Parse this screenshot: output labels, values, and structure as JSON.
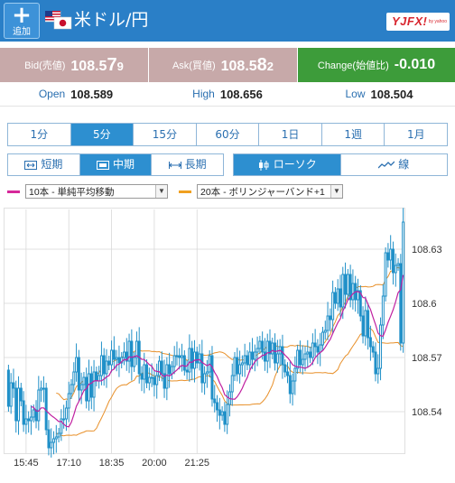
{
  "header": {
    "add_label": "追加",
    "pair_title": "米ドル/円",
    "logo_text": "YJFX!",
    "logo_sub": "by yahoo"
  },
  "quotes": {
    "bid": {
      "label": "Bid(売値)",
      "main": "108.5",
      "big": "7",
      "small": "9"
    },
    "ask": {
      "label": "Ask(買値)",
      "main": "108.5",
      "big": "8",
      "small": "2"
    },
    "change": {
      "label": "Change(始値比)",
      "value": "-0.010"
    }
  },
  "stats": {
    "open": {
      "label": "Open",
      "value": "108.589"
    },
    "high": {
      "label": "High",
      "value": "108.656"
    },
    "low": {
      "label": "Low",
      "value": "108.504"
    }
  },
  "timeframes": [
    "1分",
    "5分",
    "15分",
    "60分",
    "1日",
    "1週",
    "1月"
  ],
  "active_timeframe": "5分",
  "ranges": [
    "短期",
    "中期",
    "長期"
  ],
  "active_range": "中期",
  "chart_types": [
    "ローソク",
    "線"
  ],
  "active_chart_type": "ローソク",
  "indicators": [
    {
      "value": "10本 - 単純平均移動",
      "color": "#d6289a"
    },
    {
      "value": "20本 - ボリンジャーバンド+1",
      "color": "#f0a020"
    }
  ],
  "colors": {
    "candle": "#2090c8",
    "ma": "#c020a0",
    "band": "#e8902a",
    "grid": "#d8d8d8"
  },
  "chart_data": {
    "type": "candlestick",
    "x_ticks": [
      "15:45",
      "17:10",
      "18:35",
      "20:00",
      "21:25"
    ],
    "y_ticks": [
      108.54,
      108.57,
      108.6,
      108.63
    ],
    "y_range": [
      108.517,
      108.652
    ],
    "opens": [
      108.563,
      108.543,
      108.556,
      108.553,
      108.535,
      108.553,
      108.546,
      108.533,
      108.536,
      108.535,
      108.537,
      108.541,
      108.535,
      108.552,
      108.553,
      108.553,
      108.53,
      108.52,
      108.523,
      108.525,
      108.526,
      108.528,
      108.536,
      108.536,
      108.542,
      108.55,
      108.555,
      108.562,
      108.57,
      108.552,
      108.555,
      108.559,
      108.546,
      108.561,
      108.548,
      108.562,
      108.557,
      108.56,
      108.571,
      108.561,
      108.568,
      108.566,
      108.574,
      108.569,
      108.57,
      108.567,
      108.57,
      108.573,
      108.568,
      108.579,
      108.565,
      108.57,
      108.579,
      108.561,
      108.558,
      108.566,
      108.556,
      108.559,
      108.559,
      108.555,
      108.56,
      108.568,
      108.561,
      108.553,
      108.566,
      108.561,
      108.565,
      108.571,
      108.571,
      108.57,
      108.571,
      108.563,
      108.562,
      108.575,
      108.564,
      108.573,
      108.567,
      108.572,
      108.556,
      108.561,
      108.562,
      108.571,
      108.547,
      108.545,
      108.541,
      108.538,
      108.54,
      108.533,
      108.544,
      108.551,
      108.56,
      108.57,
      108.561,
      108.566,
      108.567,
      108.571,
      108.566,
      108.573,
      108.569,
      108.573,
      108.575,
      108.579,
      108.573,
      108.568,
      108.579,
      108.572,
      108.578,
      108.567,
      108.572,
      108.576,
      108.566,
      108.562,
      108.56,
      108.55,
      108.557,
      108.564,
      108.574,
      108.566,
      108.569,
      108.572,
      108.573,
      108.57,
      108.578,
      108.576,
      108.573,
      108.577,
      108.584,
      108.585,
      108.593,
      108.591,
      108.606,
      108.6,
      108.608,
      108.598,
      108.616,
      108.605,
      108.616,
      108.602,
      108.611,
      108.602,
      108.607,
      108.593,
      108.582,
      108.596,
      108.581,
      108.576,
      108.573,
      108.561,
      108.564,
      108.588,
      108.604,
      108.628,
      108.624,
      108.63,
      108.617,
      108.621,
      108.622,
      108.578
    ],
    "closes": [
      108.543,
      108.556,
      108.553,
      108.535,
      108.553,
      108.546,
      108.533,
      108.536,
      108.535,
      108.537,
      108.541,
      108.535,
      108.552,
      108.553,
      108.553,
      108.53,
      108.52,
      108.523,
      108.525,
      108.526,
      108.528,
      108.536,
      108.536,
      108.542,
      108.55,
      108.555,
      108.562,
      108.57,
      108.552,
      108.555,
      108.559,
      108.546,
      108.561,
      108.548,
      108.562,
      108.557,
      108.56,
      108.571,
      108.561,
      108.568,
      108.566,
      108.574,
      108.569,
      108.57,
      108.567,
      108.57,
      108.573,
      108.568,
      108.579,
      108.565,
      108.57,
      108.579,
      108.561,
      108.558,
      108.566,
      108.556,
      108.559,
      108.559,
      108.555,
      108.56,
      108.568,
      108.561,
      108.553,
      108.566,
      108.561,
      108.565,
      108.571,
      108.571,
      108.57,
      108.571,
      108.563,
      108.562,
      108.575,
      108.564,
      108.573,
      108.567,
      108.572,
      108.556,
      108.561,
      108.562,
      108.571,
      108.547,
      108.545,
      108.541,
      108.538,
      108.54,
      108.533,
      108.544,
      108.551,
      108.56,
      108.57,
      108.561,
      108.566,
      108.567,
      108.571,
      108.566,
      108.573,
      108.569,
      108.573,
      108.575,
      108.579,
      108.573,
      108.568,
      108.579,
      108.572,
      108.578,
      108.567,
      108.572,
      108.576,
      108.566,
      108.562,
      108.56,
      108.55,
      108.557,
      108.564,
      108.574,
      108.566,
      108.569,
      108.572,
      108.573,
      108.57,
      108.578,
      108.576,
      108.573,
      108.577,
      108.584,
      108.585,
      108.593,
      108.591,
      108.606,
      108.6,
      108.608,
      108.598,
      108.616,
      108.605,
      108.616,
      108.602,
      108.611,
      108.602,
      108.607,
      108.593,
      108.582,
      108.596,
      108.581,
      108.576,
      108.573,
      108.561,
      108.564,
      108.588,
      108.604,
      108.628,
      108.624,
      108.63,
      108.617,
      108.621,
      108.622,
      108.578,
      108.645
    ]
  }
}
